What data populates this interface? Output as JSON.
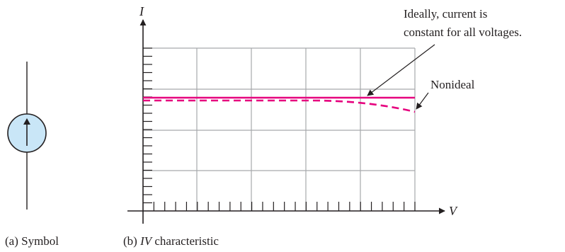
{
  "symbol_caption": "(a) Symbol",
  "iv_caption": {
    "prefix": "(b) ",
    "italic": "IV",
    "suffix": " characteristic"
  },
  "axis_labels": {
    "y": "I",
    "x": "V"
  },
  "annotations": {
    "ideal_line1": "Ideally, current is",
    "ideal_line2": "constant for all voltages.",
    "nonideal": "Nonideal"
  },
  "colors": {
    "curve": "#e6007e",
    "source_fill": "#c9e6f7",
    "grid": "#a7a9ac"
  },
  "icons": {
    "current_source": "current-source-icon"
  }
}
